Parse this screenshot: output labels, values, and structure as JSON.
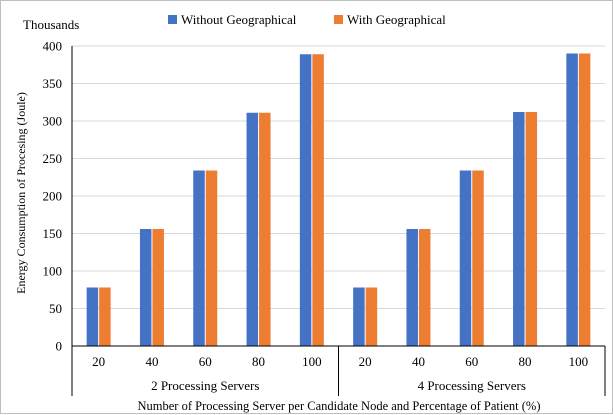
{
  "chart_data": {
    "type": "bar",
    "units_label": "Thousands",
    "ylabel": "Energy Consumption of Procesing (Joule)",
    "xlabel": "Number of Processing Server per Candidate Node and Percentage of Patient (%)",
    "ylim": [
      0,
      400
    ],
    "yticks": [
      0,
      50,
      100,
      150,
      200,
      250,
      300,
      350,
      400
    ],
    "grid": true,
    "legend_position": "top",
    "groups": [
      {
        "label": "2 Processing Servers",
        "categories": [
          "20",
          "40",
          "60",
          "80",
          "100"
        ]
      },
      {
        "label": "4 Processing Servers",
        "categories": [
          "20",
          "40",
          "60",
          "80",
          "100"
        ]
      }
    ],
    "series": [
      {
        "name": "Without Geographical",
        "color": "#4472c4",
        "values": [
          78,
          156,
          234,
          311,
          389,
          78,
          156,
          234,
          312,
          390
        ]
      },
      {
        "name": "With Geographical",
        "color": "#ed7d31",
        "values": [
          78,
          156,
          234,
          311,
          389,
          78,
          156,
          234,
          312,
          390
        ]
      }
    ]
  }
}
